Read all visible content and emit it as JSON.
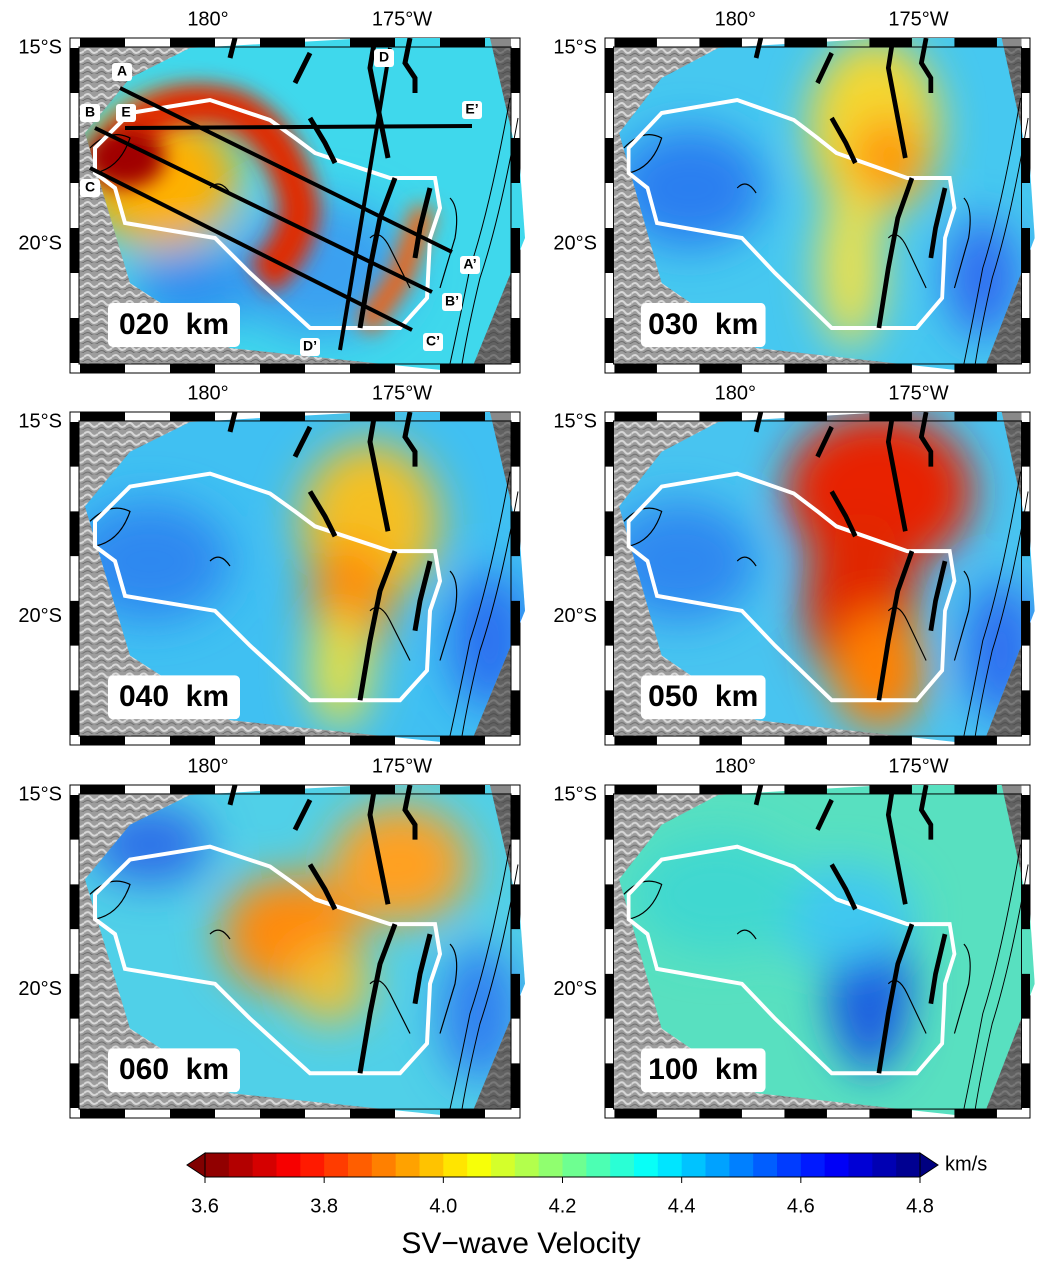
{
  "panels": [
    {
      "depth_label": "020  km",
      "lon_labels": [
        "180°",
        "175°W"
      ],
      "lat_labels": [
        "15°S",
        "20°S"
      ]
    },
    {
      "depth_label": "030  km",
      "lon_labels": [
        "180°",
        "175°W"
      ],
      "lat_labels": [
        "15°S",
        "20°S"
      ]
    },
    {
      "depth_label": "040  km",
      "lon_labels": [
        "180°",
        "175°W"
      ],
      "lat_labels": [
        "15°S",
        "20°S"
      ]
    },
    {
      "depth_label": "050  km",
      "lon_labels": [
        "180°",
        "175°W"
      ],
      "lat_labels": [
        "15°S",
        "20°S"
      ]
    },
    {
      "depth_label": "060  km",
      "lon_labels": [
        "180°",
        "175°W"
      ],
      "lat_labels": [
        "15°S",
        "20°S"
      ]
    },
    {
      "depth_label": "100  km",
      "lon_labels": [
        "180°",
        "175°W"
      ],
      "lat_labels": [
        "15°S",
        "20°S"
      ]
    }
  ],
  "profiles": [
    "A",
    "A’",
    "B",
    "B’",
    "C",
    "C’",
    "D",
    "D’",
    "E",
    "E’"
  ],
  "colorbar": {
    "range": [
      3.6,
      4.8
    ],
    "ticks": [
      {
        "value": 3.6,
        "label": "3.6"
      },
      {
        "value": 3.8,
        "label": "3.8"
      },
      {
        "value": 4,
        "label": "4.0"
      },
      {
        "value": 4.2,
        "label": "4.2"
      },
      {
        "value": 4.4,
        "label": "4.4"
      },
      {
        "value": 4.6,
        "label": "4.6"
      },
      {
        "value": 4.8,
        "label": "4.8"
      }
    ],
    "unit": "km/s",
    "title": "SV−wave Velocity"
  }
}
